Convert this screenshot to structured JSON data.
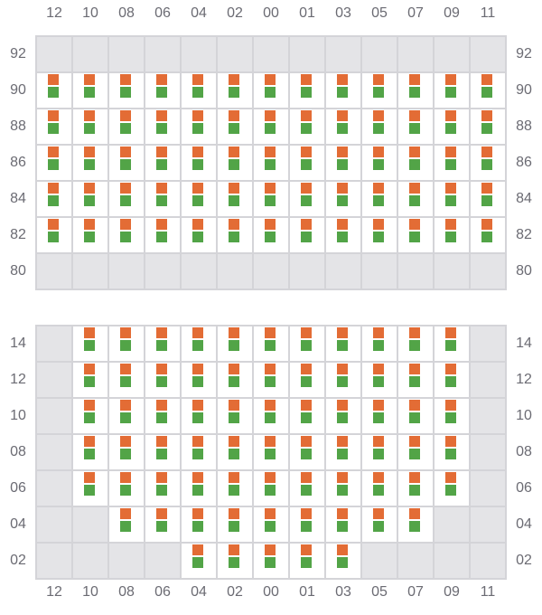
{
  "columns": [
    "12",
    "10",
    "08",
    "06",
    "04",
    "02",
    "00",
    "01",
    "03",
    "05",
    "07",
    "09",
    "11"
  ],
  "colors": {
    "top_marker": "#e36c35",
    "bottom_marker": "#52a447",
    "empty_cell": "#e4e4e7",
    "active_cell": "#ffffff",
    "grid": "#d4d4d8"
  },
  "panels": [
    {
      "rows": [
        {
          "label": "92",
          "active": []
        },
        {
          "label": "90",
          "active": [
            "12",
            "10",
            "08",
            "06",
            "04",
            "02",
            "00",
            "01",
            "03",
            "05",
            "07",
            "09",
            "11"
          ]
        },
        {
          "label": "88",
          "active": [
            "12",
            "10",
            "08",
            "06",
            "04",
            "02",
            "00",
            "01",
            "03",
            "05",
            "07",
            "09",
            "11"
          ]
        },
        {
          "label": "86",
          "active": [
            "12",
            "10",
            "08",
            "06",
            "04",
            "02",
            "00",
            "01",
            "03",
            "05",
            "07",
            "09",
            "11"
          ]
        },
        {
          "label": "84",
          "active": [
            "12",
            "10",
            "08",
            "06",
            "04",
            "02",
            "00",
            "01",
            "03",
            "05",
            "07",
            "09",
            "11"
          ]
        },
        {
          "label": "82",
          "active": [
            "12",
            "10",
            "08",
            "06",
            "04",
            "02",
            "00",
            "01",
            "03",
            "05",
            "07",
            "09",
            "11"
          ]
        },
        {
          "label": "80",
          "active": []
        }
      ]
    },
    {
      "rows": [
        {
          "label": "14",
          "active": [
            "10",
            "08",
            "06",
            "04",
            "02",
            "00",
            "01",
            "03",
            "05",
            "07",
            "09"
          ]
        },
        {
          "label": "12",
          "active": [
            "10",
            "08",
            "06",
            "04",
            "02",
            "00",
            "01",
            "03",
            "05",
            "07",
            "09"
          ]
        },
        {
          "label": "10",
          "active": [
            "10",
            "08",
            "06",
            "04",
            "02",
            "00",
            "01",
            "03",
            "05",
            "07",
            "09"
          ]
        },
        {
          "label": "08",
          "active": [
            "10",
            "08",
            "06",
            "04",
            "02",
            "00",
            "01",
            "03",
            "05",
            "07",
            "09"
          ]
        },
        {
          "label": "06",
          "active": [
            "10",
            "08",
            "06",
            "04",
            "02",
            "00",
            "01",
            "03",
            "05",
            "07",
            "09"
          ]
        },
        {
          "label": "04",
          "active": [
            "08",
            "06",
            "04",
            "02",
            "00",
            "01",
            "03",
            "05",
            "07"
          ]
        },
        {
          "label": "02",
          "active": [
            "04",
            "02",
            "00",
            "01",
            "03"
          ]
        }
      ]
    }
  ]
}
